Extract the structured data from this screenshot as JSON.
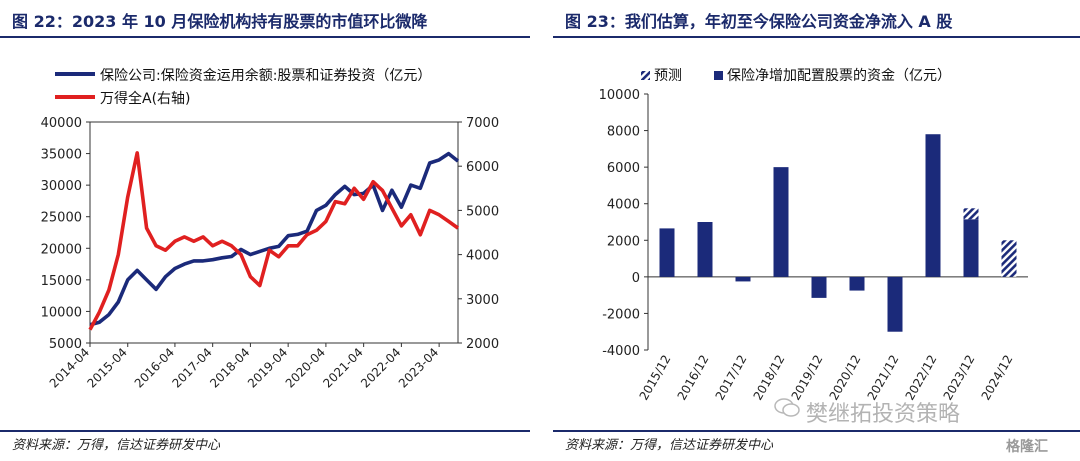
{
  "left": {
    "title": "图 22：2023 年 10 月保险机构持有股票的市值环比微降",
    "source": "资料来源：万得，信达证券研发中心",
    "chart_data": {
      "type": "line",
      "x": [
        "2014-04",
        "2014-07",
        "2014-10",
        "2015-01",
        "2015-04",
        "2015-06",
        "2015-07",
        "2015-10",
        "2016-01",
        "2016-04",
        "2016-07",
        "2016-10",
        "2017-01",
        "2017-04",
        "2017-07",
        "2017-10",
        "2018-01",
        "2018-04",
        "2018-07",
        "2018-10",
        "2019-01",
        "2019-04",
        "2019-07",
        "2019-10",
        "2020-01",
        "2020-04",
        "2020-07",
        "2020-10",
        "2021-01",
        "2021-04",
        "2021-07",
        "2021-10",
        "2022-01",
        "2022-04",
        "2022-07",
        "2022-10",
        "2023-01",
        "2023-04",
        "2023-07",
        "2023-10"
      ],
      "x_ticks": [
        "2014-04",
        "2015-04",
        "2016-04",
        "2017-04",
        "2018-04",
        "2019-04",
        "2020-04",
        "2021-04",
        "2022-04",
        "2023-04"
      ],
      "series": [
        {
          "name": "保险公司:保险资金运用余额:股票和证券投资（亿元）",
          "axis": "left",
          "color": "#1b2a7a",
          "values": [
            7900,
            8300,
            9500,
            11500,
            15000,
            16500,
            15000,
            13500,
            15500,
            16800,
            17500,
            18000,
            18000,
            18200,
            18500,
            18700,
            19800,
            19000,
            19500,
            20000,
            20300,
            22000,
            22200,
            22700,
            26000,
            26800,
            28500,
            29800,
            28500,
            28700,
            30000,
            26000,
            29200,
            26500,
            30000,
            29500,
            33500,
            34000,
            35000,
            33800
          ]
        },
        {
          "name": "万得全A(右轴)",
          "axis": "right",
          "color": "#e02020",
          "values": [
            2300,
            2700,
            3200,
            4000,
            5300,
            6300,
            4600,
            4200,
            4100,
            4300,
            4400,
            4300,
            4400,
            4200,
            4300,
            4200,
            4000,
            3500,
            3300,
            4100,
            3950,
            4200,
            4200,
            4450,
            4550,
            4750,
            5200,
            5150,
            5500,
            5250,
            5650,
            5450,
            5050,
            4650,
            4900,
            4450,
            5000,
            4900,
            4750,
            4600
          ]
        }
      ],
      "ylim_left": [
        5000,
        40000
      ],
      "yticks_left": [
        "40000",
        "35000",
        "30000",
        "25000",
        "20000",
        "15000",
        "10000",
        "5000"
      ],
      "ylim_right": [
        2000,
        7000
      ],
      "yticks_right": [
        "7000",
        "6000",
        "5000",
        "4000",
        "3000",
        "2000"
      ],
      "grid": false,
      "legend": "top-left"
    }
  },
  "right": {
    "title": "图 23：我们估算，年初至今保险公司资金净流入 A 股",
    "source": "资料来源：万得，信达证券研发中心",
    "chart_data": {
      "type": "bar",
      "categories": [
        "2015/12",
        "2016/12",
        "2017/12",
        "2018/12",
        "2019/12",
        "2020/12",
        "2021/12",
        "2022/12",
        "2023/12",
        "2024/12"
      ],
      "series": [
        {
          "name": "保险净增加配置股票的资金（亿元）",
          "color": "#1b2a7a",
          "values": [
            2650,
            3000,
            -250,
            6000,
            -1150,
            -750,
            -3000,
            7800,
            3150,
            0
          ]
        },
        {
          "name": "预测",
          "pattern": "hatch",
          "color": "#1b2a7a",
          "values": [
            0,
            0,
            0,
            0,
            0,
            0,
            0,
            0,
            600,
            2000
          ]
        }
      ],
      "ylim": [
        -4000,
        10000
      ],
      "yticks": [
        "10000",
        "8000",
        "6000",
        "4000",
        "2000",
        "0",
        "-2000",
        "-4000"
      ],
      "grid": false,
      "legend": "top"
    }
  },
  "watermark": {
    "text": "樊继拓投资策略",
    "brand": "格隆汇"
  }
}
